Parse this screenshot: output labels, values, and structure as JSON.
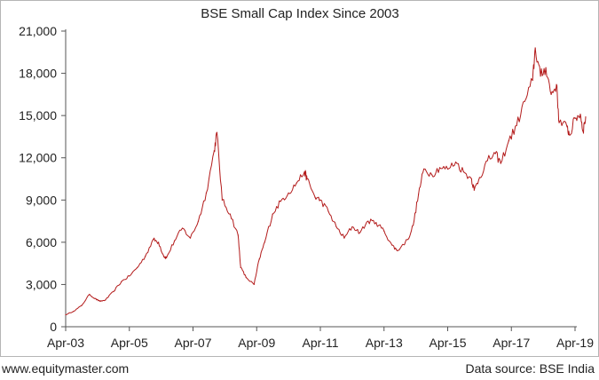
{
  "chart_data": {
    "type": "line",
    "title": "BSE Small Cap Index Since 2003",
    "xlabel": "",
    "ylabel": "",
    "ylim": [
      0,
      21000
    ],
    "x_tick_labels": [
      "Apr-03",
      "Apr-05",
      "Apr-07",
      "Apr-09",
      "Apr-11",
      "Apr-13",
      "Apr-15",
      "Apr-17",
      "Apr-19"
    ],
    "y_tick_labels": [
      "0",
      "3,000",
      "6,000",
      "9,000",
      "12,000",
      "15,000",
      "18,000",
      "21,000"
    ],
    "y_ticks": [
      0,
      3000,
      6000,
      9000,
      12000,
      15000,
      18000,
      21000
    ],
    "grid": false,
    "legend": "none",
    "line_color": "#b31b1b",
    "series": [
      {
        "x": [
          "2003-04",
          "2003-07",
          "2003-10",
          "2004-01",
          "2004-03",
          "2004-05",
          "2004-07",
          "2004-10",
          "2005-01",
          "2005-04",
          "2005-07",
          "2005-10",
          "2006-01",
          "2006-03",
          "2006-05",
          "2006-06",
          "2006-09",
          "2006-12",
          "2007-03",
          "2007-06",
          "2007-09",
          "2007-12",
          "2008-01",
          "2008-03",
          "2008-06",
          "2008-09",
          "2008-10",
          "2008-12",
          "2009-03",
          "2009-05",
          "2009-07",
          "2009-10",
          "2010-01",
          "2010-04",
          "2010-07",
          "2010-10",
          "2010-11",
          "2011-02",
          "2011-04",
          "2011-07",
          "2011-10",
          "2012-01",
          "2012-04",
          "2012-07",
          "2012-10",
          "2013-01",
          "2013-04",
          "2013-07",
          "2013-09",
          "2014-01",
          "2014-03",
          "2014-05",
          "2014-07",
          "2014-10",
          "2015-01",
          "2015-04",
          "2015-07",
          "2015-10",
          "2016-01",
          "2016-02",
          "2016-04",
          "2016-07",
          "2016-10",
          "2016-12",
          "2017-03",
          "2017-06",
          "2017-09",
          "2017-12",
          "2018-01",
          "2018-03",
          "2018-05",
          "2018-07",
          "2018-09",
          "2018-10",
          "2019-01",
          "2019-02",
          "2019-04",
          "2019-06",
          "2019-07",
          "2019-08"
        ],
        "values": [
          850,
          1100,
          1500,
          2300,
          2000,
          1800,
          1900,
          2500,
          3200,
          3600,
          4200,
          5000,
          6200,
          6000,
          5000,
          4900,
          6100,
          7000,
          6300,
          7500,
          9500,
          12500,
          13800,
          9000,
          8000,
          6500,
          4200,
          3500,
          3000,
          4800,
          6000,
          8000,
          8900,
          9500,
          10200,
          11000,
          10500,
          9200,
          9000,
          8200,
          7100,
          6300,
          7100,
          6700,
          7500,
          7400,
          6800,
          5800,
          5400,
          6200,
          7200,
          9400,
          11200,
          10800,
          11300,
          11200,
          11700,
          11000,
          10500,
          9700,
          10600,
          11800,
          12300,
          11600,
          13200,
          14300,
          16000,
          17500,
          19800,
          17800,
          18400,
          16500,
          17200,
          14500,
          14200,
          13600,
          14800,
          15100,
          13900,
          14900
        ]
      }
    ]
  },
  "footer": {
    "website": "www.equitymaster.com",
    "source": "Data source: BSE India"
  }
}
